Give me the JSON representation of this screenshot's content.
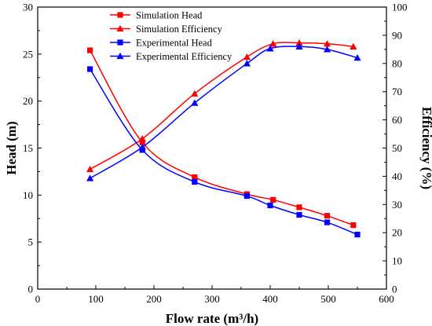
{
  "chart_data": {
    "type": "line",
    "xlabel": "Flow rate (m³/h)",
    "ylabel_left": "Head (m)",
    "ylabel_right": "Efficiency (%)",
    "xlim": [
      0,
      600
    ],
    "ylim_left": [
      0,
      30
    ],
    "ylim_right": [
      0,
      100
    ],
    "xticks": [
      "0",
      "100",
      "200",
      "300",
      "400",
      "500",
      "600"
    ],
    "yticks_left": [
      "0",
      "5",
      "10",
      "15",
      "20",
      "25",
      "30"
    ],
    "yticks_right": [
      "0",
      "10",
      "20",
      "30",
      "40",
      "50",
      "60",
      "70",
      "80",
      "90",
      "100"
    ],
    "grid": false,
    "legend_position": "top-center",
    "series": [
      {
        "name": "Simulation Head",
        "axis": "left",
        "marker": "square",
        "color": "#ff0000",
        "x": [
          90,
          180,
          270,
          360,
          405,
          450,
          498,
          543
        ],
        "y": [
          25.4,
          15.6,
          11.9,
          10.1,
          9.5,
          8.7,
          7.8,
          6.8
        ]
      },
      {
        "name": "Simulation Efficiency",
        "axis": "right",
        "marker": "triangle",
        "color": "#ff0000",
        "x": [
          90,
          180,
          270,
          360,
          405,
          450,
          498,
          543
        ],
        "y": [
          42.5,
          53.3,
          69.3,
          82.3,
          87.0,
          87.3,
          87.0,
          86.0
        ]
      },
      {
        "name": "Experimental Head",
        "axis": "left",
        "marker": "square",
        "color": "#0000ff",
        "x": [
          90,
          180,
          270,
          360,
          400,
          450,
          498,
          550
        ],
        "y": [
          23.4,
          14.8,
          11.4,
          9.9,
          8.9,
          7.9,
          7.1,
          5.8
        ]
      },
      {
        "name": "Experimental Efficiency",
        "axis": "right",
        "marker": "triangle",
        "color": "#0000ff",
        "x": [
          90,
          180,
          270,
          360,
          400,
          450,
          498,
          550
        ],
        "y": [
          39.3,
          50.3,
          66.0,
          80.0,
          85.3,
          86.0,
          85.0,
          82.0
        ]
      }
    ]
  }
}
